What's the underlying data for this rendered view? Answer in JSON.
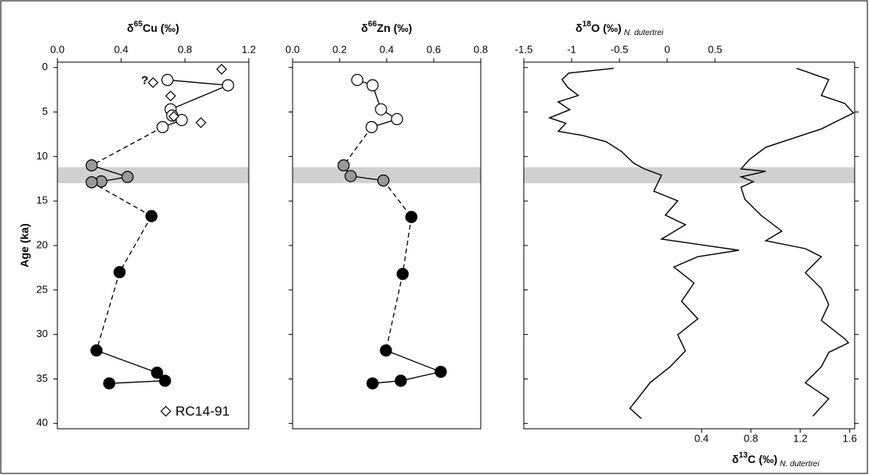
{
  "chart_data": [
    {
      "type": "scatter",
      "xlabel": [
        "δ",
        "65",
        "Cu (‰)"
      ],
      "ylabel": "Age (ka)",
      "xlim": [
        0,
        1.2
      ],
      "xticks": [
        {
          "value": 0,
          "label": "0.0"
        },
        0.4,
        0.8,
        1.2
      ],
      "ylim": [
        -0.6,
        40.6
      ],
      "yticks": [
        0,
        5,
        10,
        15,
        20,
        25,
        30,
        35,
        40
      ],
      "show_ytick_labels": true,
      "band": [
        11.2,
        13.0
      ],
      "bridge": "dashed",
      "annotation": "?",
      "series": [
        {
          "marker": "circle",
          "fill": "#ffffff",
          "values": [
            0.69,
            1.07,
            0.71,
            0.72,
            0.78,
            0.66
          ],
          "age": [
            1.4,
            2.0,
            4.7,
            5.4,
            5.9,
            6.7
          ],
          "segments": [
            "solid",
            "solid",
            "solid",
            "solid",
            "solid"
          ]
        },
        {
          "marker": "circle",
          "fill": "#999999",
          "values": [
            0.215,
            0.44,
            0.275,
            0.215
          ],
          "age": [
            11.0,
            12.3,
            12.8,
            12.9
          ],
          "segments": [
            "solid",
            "solid",
            "solid"
          ]
        },
        {
          "marker": "circle",
          "fill": "#000000",
          "values": [
            0.59,
            0.39,
            0.245,
            0.625,
            0.675,
            0.325
          ],
          "age": [
            16.7,
            23.0,
            31.8,
            34.3,
            35.2,
            35.5
          ],
          "segments": [
            "dashed",
            "dashed",
            "solid",
            "solid",
            "solid"
          ]
        },
        {
          "name": "RC14-91",
          "marker": "diamond",
          "fill": "#ffffff",
          "values": [
            1.03,
            0.6,
            0.71,
            0.73,
            0.9
          ],
          "age": [
            0.2,
            1.7,
            3.2,
            5.5,
            6.2
          ]
        }
      ]
    },
    {
      "type": "scatter",
      "xlabel": [
        "δ",
        "66",
        "Zn (‰)"
      ],
      "xlim": [
        0,
        0.8
      ],
      "xticks": [
        {
          "value": 0,
          "label": "0.0"
        },
        0.2,
        0.4,
        0.6,
        0.8
      ],
      "ylim": [
        -0.6,
        40.6
      ],
      "yticks": [
        0,
        5,
        10,
        15,
        20,
        25,
        30,
        35,
        40
      ],
      "band": [
        11.2,
        13.0
      ],
      "bridge": "dashed",
      "series": [
        {
          "marker": "circle",
          "fill": "#ffffff",
          "values": [
            0.275,
            0.34,
            0.376,
            0.444,
            0.336
          ],
          "age": [
            1.4,
            2.0,
            4.7,
            5.8,
            6.7
          ],
          "segments": [
            "solid",
            "solid",
            "solid",
            "solid"
          ]
        },
        {
          "marker": "circle",
          "fill": "#999999",
          "values": [
            0.217,
            0.247,
            0.386
          ],
          "age": [
            11.0,
            12.2,
            12.7
          ],
          "segments": [
            "solid",
            "solid"
          ]
        },
        {
          "marker": "circle",
          "fill": "#000000",
          "values": [
            0.505,
            0.468,
            0.397,
            0.63,
            0.46,
            0.34
          ],
          "age": [
            16.8,
            23.2,
            31.8,
            34.2,
            35.2,
            35.5
          ],
          "segments": [
            "dashed",
            "dashed",
            "solid",
            "solid",
            "solid"
          ]
        }
      ]
    },
    {
      "type": "line",
      "xlabel": [
        "δ",
        "18",
        "O (‰)",
        "N. dutertrei"
      ],
      "x2label": [
        "δ",
        "13",
        "C (‰)",
        "N. dutertrei"
      ],
      "xlim": [
        -1.5,
        1.96
      ],
      "xticks": [
        -1.5,
        -1,
        -0.5,
        0,
        0.5
      ],
      "x2lim": [
        -1.04,
        1.64
      ],
      "x2ticks": [
        0.4,
        0.8,
        1.2,
        1.6
      ],
      "ylim": [
        -0.6,
        40.6
      ],
      "yticks": [
        0,
        5,
        10,
        15,
        20,
        25,
        30,
        35,
        40
      ],
      "right_ticks": true,
      "band": [
        11.2,
        13.0
      ],
      "color": "#000000",
      "series": [
        {
          "axis": "x",
          "values": [
            -0.56,
            -1.03,
            -1.1,
            -1.04,
            -0.93,
            -1.14,
            -1.02,
            -1.23,
            -1.06,
            -1.14,
            -0.89,
            -0.64,
            -0.48,
            -0.35,
            -0.24,
            -0.06,
            -0.14,
            0.11,
            -0.02,
            0.19,
            -0.06,
            0.75,
            0.32,
            0.07,
            0.28,
            0.15,
            0.32,
            0.11,
            0.19,
            0.03,
            -0.18,
            -0.31,
            -0.39,
            -0.27
          ],
          "age": [
            0.09,
            0.63,
            1.35,
            2.24,
            3.14,
            3.86,
            4.75,
            5.65,
            6.28,
            7.17,
            7.62,
            8.34,
            9.42,
            10.76,
            11.39,
            12.11,
            13.9,
            14.98,
            16.59,
            17.67,
            19.28,
            20.54,
            21.26,
            22.42,
            24.22,
            26.28,
            28.25,
            30.04,
            31.84,
            33.63,
            35.43,
            37.22,
            38.3,
            39.46
          ]
        },
        {
          "axis": "x2",
          "values": [
            1.17,
            1.43,
            1.37,
            1.56,
            1.63,
            1.5,
            1.37,
            0.92,
            0.79,
            0.72,
            0.92,
            0.72,
            0.82,
            0.72,
            0.75,
            0.88,
            1.05,
            0.92,
            1.24,
            1.37,
            1.24,
            1.37,
            1.43,
            1.37,
            1.56,
            1.59,
            1.43,
            1.37,
            1.24,
            1.43,
            1.3
          ],
          "age": [
            0.09,
            1.35,
            3.14,
            4.04,
            5.11,
            6.01,
            6.91,
            8.97,
            10.31,
            11.39,
            11.66,
            12.29,
            12.83,
            13.45,
            14.8,
            16.59,
            18.39,
            19.46,
            20.36,
            21.26,
            23.05,
            24.84,
            26.64,
            28.43,
            30.49,
            30.94,
            32.02,
            33.63,
            35.43,
            37.22,
            39.19
          ]
        }
      ]
    }
  ]
}
